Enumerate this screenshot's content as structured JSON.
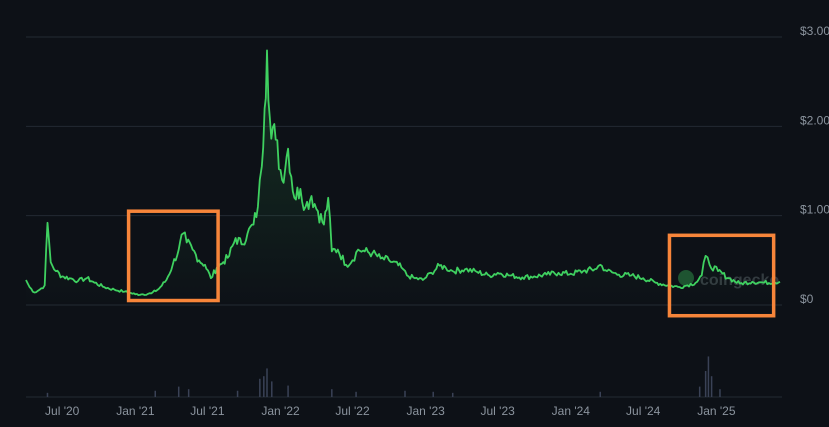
{
  "chart_data": {
    "type": "area",
    "title": "",
    "xlabel": "",
    "ylabel": "",
    "x_tick_labels": [
      "Jul '20",
      "Jan '21",
      "Jul '21",
      "Jan '22",
      "Jul '22",
      "Jan '23",
      "Jul '23",
      "Jan '24",
      "Jul '24",
      "Jan '25"
    ],
    "y_tick_labels": [
      "$3.00",
      "$2.00",
      "$1.00",
      "$0"
    ],
    "ylim": [
      0,
      3.0
    ],
    "xlim": [
      "2020-04-01",
      "2025-06-15"
    ],
    "grid": "horizontal",
    "watermark": "coingecko",
    "colors": {
      "line": "#3fd160",
      "grid": "#232a33",
      "highlight_box": "#f7853a",
      "volume": "#3a4256",
      "background": "#0d1117"
    },
    "series": [
      {
        "values": [
          [
            "2020-04-01",
            0.28
          ],
          [
            "2020-04-10",
            0.2
          ],
          [
            "2020-04-22",
            0.14
          ],
          [
            "2020-05-05",
            0.17
          ],
          [
            "2020-05-18",
            0.22
          ],
          [
            "2020-05-25",
            0.92
          ],
          [
            "2020-06-02",
            0.48
          ],
          [
            "2020-06-15",
            0.38
          ],
          [
            "2020-07-01",
            0.32
          ],
          [
            "2020-07-20",
            0.3
          ],
          [
            "2020-08-10",
            0.27
          ],
          [
            "2020-09-01",
            0.3
          ],
          [
            "2020-09-20",
            0.25
          ],
          [
            "2020-10-15",
            0.2
          ],
          [
            "2020-11-10",
            0.17
          ],
          [
            "2020-12-05",
            0.15
          ],
          [
            "2021-01-01",
            0.12
          ],
          [
            "2021-01-20",
            0.12
          ],
          [
            "2021-02-10",
            0.13
          ],
          [
            "2021-03-01",
            0.18
          ],
          [
            "2021-03-20",
            0.28
          ],
          [
            "2021-04-05",
            0.45
          ],
          [
            "2021-04-20",
            0.62
          ],
          [
            "2021-05-01",
            0.8
          ],
          [
            "2021-05-10",
            0.7
          ],
          [
            "2021-05-25",
            0.62
          ],
          [
            "2021-06-10",
            0.5
          ],
          [
            "2021-06-25",
            0.45
          ],
          [
            "2021-07-10",
            0.3
          ],
          [
            "2021-07-25",
            0.42
          ],
          [
            "2021-08-10",
            0.48
          ],
          [
            "2021-08-25",
            0.55
          ],
          [
            "2021-09-10",
            0.75
          ],
          [
            "2021-09-25",
            0.68
          ],
          [
            "2021-10-10",
            0.8
          ],
          [
            "2021-10-25",
            0.9
          ],
          [
            "2021-11-05",
            1.1
          ],
          [
            "2021-11-15",
            1.55
          ],
          [
            "2021-11-22",
            2.2
          ],
          [
            "2021-11-28",
            2.85
          ],
          [
            "2021-12-05",
            2.1
          ],
          [
            "2021-12-20",
            1.85
          ],
          [
            "2022-01-05",
            1.4
          ],
          [
            "2022-01-20",
            1.75
          ],
          [
            "2022-02-05",
            1.2
          ],
          [
            "2022-02-20",
            1.3
          ],
          [
            "2022-03-05",
            1.1
          ],
          [
            "2022-03-20",
            1.22
          ],
          [
            "2022-04-05",
            1.05
          ],
          [
            "2022-04-20",
            0.9
          ],
          [
            "2022-05-01",
            1.2
          ],
          [
            "2022-05-10",
            0.6
          ],
          [
            "2022-05-25",
            0.62
          ],
          [
            "2022-06-15",
            0.45
          ],
          [
            "2022-07-01",
            0.5
          ],
          [
            "2022-07-15",
            0.62
          ],
          [
            "2022-08-01",
            0.6
          ],
          [
            "2022-08-20",
            0.58
          ],
          [
            "2022-09-10",
            0.52
          ],
          [
            "2022-10-01",
            0.5
          ],
          [
            "2022-11-01",
            0.42
          ],
          [
            "2022-11-15",
            0.33
          ],
          [
            "2022-12-05",
            0.3
          ],
          [
            "2022-12-25",
            0.28
          ],
          [
            "2023-01-15",
            0.36
          ],
          [
            "2023-02-05",
            0.44
          ],
          [
            "2023-02-20",
            0.42
          ],
          [
            "2023-03-10",
            0.38
          ],
          [
            "2023-04-10",
            0.4
          ],
          [
            "2023-05-10",
            0.37
          ],
          [
            "2023-06-10",
            0.33
          ],
          [
            "2023-07-01",
            0.36
          ],
          [
            "2023-08-01",
            0.33
          ],
          [
            "2023-09-01",
            0.31
          ],
          [
            "2023-10-01",
            0.32
          ],
          [
            "2023-11-01",
            0.34
          ],
          [
            "2023-12-01",
            0.36
          ],
          [
            "2024-01-01",
            0.35
          ],
          [
            "2024-02-01",
            0.38
          ],
          [
            "2024-03-01",
            0.4
          ],
          [
            "2024-03-15",
            0.45
          ],
          [
            "2024-04-01",
            0.38
          ],
          [
            "2024-05-01",
            0.34
          ],
          [
            "2024-06-01",
            0.33
          ],
          [
            "2024-07-01",
            0.3
          ],
          [
            "2024-08-01",
            0.25
          ],
          [
            "2024-09-01",
            0.22
          ],
          [
            "2024-10-01",
            0.2
          ],
          [
            "2024-10-20",
            0.22
          ],
          [
            "2024-11-10",
            0.25
          ],
          [
            "2024-11-25",
            0.33
          ],
          [
            "2024-12-05",
            0.55
          ],
          [
            "2024-12-15",
            0.45
          ],
          [
            "2025-01-05",
            0.38
          ],
          [
            "2025-02-01",
            0.3
          ],
          [
            "2025-03-01",
            0.24
          ],
          [
            "2025-04-01",
            0.26
          ],
          [
            "2025-05-01",
            0.25
          ],
          [
            "2025-06-10",
            0.26
          ]
        ]
      }
    ],
    "highlights": [
      {
        "from": "2020-12-15",
        "to": "2021-07-28",
        "ymin": 0.05,
        "ymax": 1.05
      },
      {
        "from": "2024-09-05",
        "to": "2025-05-25",
        "ymin": -0.12,
        "ymax": 0.78
      }
    ],
    "volume": [
      [
        "2020-05-25",
        0.08
      ],
      [
        "2021-02-20",
        0.12
      ],
      [
        "2021-04-20",
        0.2
      ],
      [
        "2021-05-15",
        0.15
      ],
      [
        "2021-09-15",
        0.12
      ],
      [
        "2021-11-10",
        0.35
      ],
      [
        "2021-11-20",
        0.4
      ],
      [
        "2021-11-28",
        0.55
      ],
      [
        "2021-12-10",
        0.3
      ],
      [
        "2022-01-20",
        0.22
      ],
      [
        "2022-05-10",
        0.15
      ],
      [
        "2022-07-10",
        0.1
      ],
      [
        "2022-11-10",
        0.12
      ],
      [
        "2023-01-20",
        0.1
      ],
      [
        "2023-03-10",
        0.08
      ],
      [
        "2024-03-15",
        0.1
      ],
      [
        "2024-11-20",
        0.2
      ],
      [
        "2024-12-05",
        0.5
      ],
      [
        "2024-12-12",
        0.78
      ],
      [
        "2024-12-20",
        0.4
      ],
      [
        "2025-01-10",
        0.15
      ]
    ]
  }
}
